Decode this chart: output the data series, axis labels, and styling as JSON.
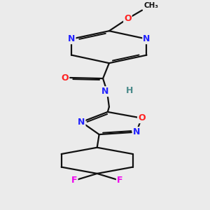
{
  "bg_color": "#ebebeb",
  "bond_color": "#111111",
  "N_color": "#2222ff",
  "O_color": "#ff2020",
  "F_color": "#ee00ee",
  "H_color": "#4a8a8a",
  "figsize": [
    3.0,
    3.0
  ],
  "dpi": 100,
  "xlim": [
    2.5,
    7.5
  ],
  "ylim": [
    0.5,
    13.5
  ]
}
